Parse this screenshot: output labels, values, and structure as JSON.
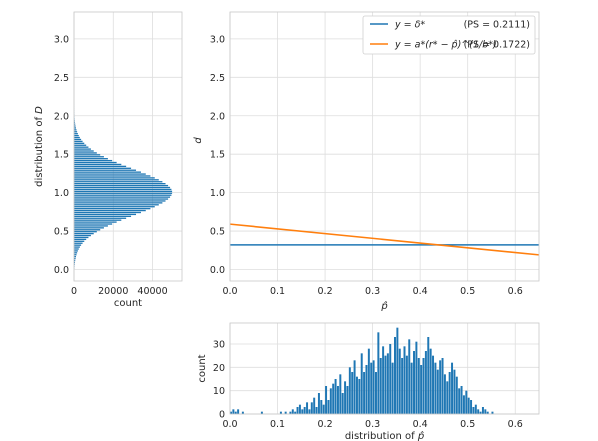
{
  "colors": {
    "blue": "#1f77b4",
    "orange": "#ff7f0e"
  },
  "chart_data": [
    {
      "id": "left",
      "type": "bar",
      "orientation": "horizontal",
      "xlabel": "count",
      "ylabel": "distribution of D",
      "xlim": [
        0,
        55000
      ],
      "ylim": [
        -0.15,
        3.35
      ],
      "xticks": [
        0,
        20000,
        40000
      ],
      "yticks": [
        0.0,
        0.5,
        1.0,
        1.5,
        2.0,
        2.5,
        3.0
      ],
      "xtick_labels": [
        "0",
        "20000",
        "40000"
      ],
      "ytick_labels": [
        "0.0",
        "0.5",
        "1.0",
        "1.5",
        "2.0",
        "2.5",
        "3.0"
      ],
      "grid": true,
      "distribution": {
        "shape": "normal",
        "mean": 1.0,
        "std": 0.3,
        "peak_count": 50000,
        "bin_width": 0.025,
        "range": [
          0.0,
          2.35
        ]
      }
    },
    {
      "id": "main",
      "type": "line",
      "xlabel": "p̂",
      "ylabel": "d",
      "xlim": [
        0.0,
        0.65
      ],
      "ylim": [
        -0.15,
        3.35
      ],
      "xticks": [
        0.0,
        0.1,
        0.2,
        0.3,
        0.4,
        0.5,
        0.6
      ],
      "yticks": [
        0.0,
        0.5,
        1.0,
        1.5,
        2.0,
        2.5,
        3.0
      ],
      "xtick_labels": [
        "0.0",
        "0.1",
        "0.2",
        "0.3",
        "0.4",
        "0.5",
        "0.6"
      ],
      "ytick_labels": [
        "0.0",
        "0.5",
        "1.0",
        "1.5",
        "2.0",
        "2.5",
        "3.0"
      ],
      "grid": true,
      "legend_position": "top-right",
      "series": [
        {
          "name": "y = δ*",
          "ps_label": "(PS = 0.2111)",
          "color": "#1f77b4",
          "x": [
            0.0,
            0.65
          ],
          "y": [
            0.32,
            0.32
          ]
        },
        {
          "name": "y = a*(r* − p̂)^(1/b*)",
          "ps_label": "(PS = 0.1722)",
          "color": "#ff7f0e",
          "x": [
            0.0,
            0.65
          ],
          "y": [
            0.59,
            0.19
          ]
        }
      ]
    },
    {
      "id": "bottom",
      "type": "bar",
      "xlabel": "distribution of p̂",
      "ylabel": "count",
      "xlim": [
        0.0,
        0.65
      ],
      "ylim": [
        0,
        39
      ],
      "xticks": [
        0.0,
        0.1,
        0.2,
        0.3,
        0.4,
        0.5,
        0.6
      ],
      "yticks": [
        0,
        10,
        20,
        30
      ],
      "xtick_labels": [
        "0.0",
        "0.1",
        "0.2",
        "0.3",
        "0.4",
        "0.5",
        "0.6"
      ],
      "ytick_labels": [
        "0",
        "10",
        "20",
        "30"
      ],
      "grid": true,
      "bin_width": 0.005,
      "bin_start": 0.0,
      "counts": [
        1,
        2,
        1,
        2,
        0,
        1,
        0,
        0,
        0,
        0,
        0,
        0,
        0,
        1,
        0,
        0,
        0,
        0,
        0,
        0,
        0,
        1,
        0,
        1,
        0,
        1,
        2,
        1,
        3,
        4,
        2,
        3,
        5,
        2,
        5,
        7,
        3,
        9,
        6,
        4,
        12,
        6,
        11,
        13,
        15,
        12,
        17,
        9,
        14,
        12,
        20,
        18,
        23,
        16,
        15,
        26,
        18,
        21,
        28,
        22,
        23,
        18,
        35,
        24,
        29,
        25,
        26,
        30,
        22,
        33,
        37,
        28,
        24,
        29,
        25,
        32,
        22,
        27,
        31,
        24,
        21,
        24,
        27,
        33,
        28,
        25,
        22,
        19,
        23,
        24,
        17,
        14,
        18,
        22,
        19,
        16,
        11,
        12,
        8,
        10,
        7,
        6,
        3,
        4,
        2,
        1,
        3,
        2,
        1,
        0,
        1
      ]
    }
  ]
}
